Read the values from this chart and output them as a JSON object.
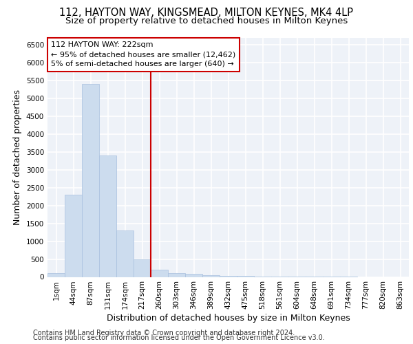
{
  "title1": "112, HAYTON WAY, KINGSMEAD, MILTON KEYNES, MK4 4LP",
  "title2": "Size of property relative to detached houses in Milton Keynes",
  "xlabel": "Distribution of detached houses by size in Milton Keynes",
  "ylabel": "Number of detached properties",
  "footer1": "Contains HM Land Registry data © Crown copyright and database right 2024.",
  "footer2": "Contains public sector information licensed under the Open Government Licence v3.0.",
  "bin_labels": [
    "1sqm",
    "44sqm",
    "87sqm",
    "131sqm",
    "174sqm",
    "217sqm",
    "260sqm",
    "303sqm",
    "346sqm",
    "389sqm",
    "432sqm",
    "475sqm",
    "518sqm",
    "561sqm",
    "604sqm",
    "648sqm",
    "691sqm",
    "734sqm",
    "777sqm",
    "820sqm",
    "863sqm"
  ],
  "bar_values": [
    100,
    2300,
    5400,
    3400,
    1300,
    490,
    200,
    100,
    80,
    50,
    30,
    20,
    10,
    5,
    3,
    2,
    1,
    1,
    0,
    0,
    0
  ],
  "bar_color": "#ccdcee",
  "bar_edge_color": "#a8c0de",
  "bar_width": 1.0,
  "vline_x": 5.5,
  "vline_color": "#cc0000",
  "annotation_text": "112 HAYTON WAY: 222sqm\n← 95% of detached houses are smaller (12,462)\n5% of semi-detached houses are larger (640) →",
  "annotation_box_color": "#cc0000",
  "ylim": [
    0,
    6700
  ],
  "yticks": [
    0,
    500,
    1000,
    1500,
    2000,
    2500,
    3000,
    3500,
    4000,
    4500,
    5000,
    5500,
    6000,
    6500
  ],
  "bg_color": "#eef2f8",
  "grid_color": "#ffffff",
  "title_fontsize": 10.5,
  "subtitle_fontsize": 9.5,
  "label_fontsize": 9,
  "tick_fontsize": 7.5,
  "footer_fontsize": 7
}
